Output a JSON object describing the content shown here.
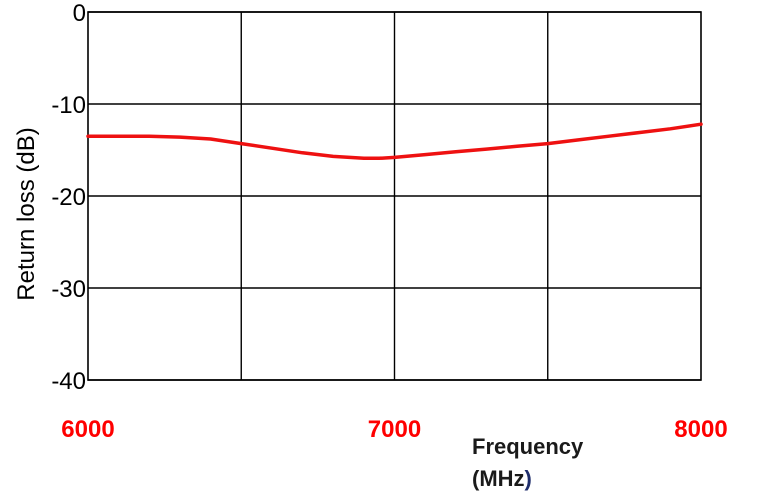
{
  "chart_data": {
    "type": "line",
    "title": "",
    "xlabel_line1": "Frequency",
    "xlabel_line2_open": "(MHz",
    "xlabel_line2_close": ")",
    "ylabel": "Return loss (dB)",
    "xlim": [
      6000,
      8000
    ],
    "ylim": [
      -40,
      0
    ],
    "x_ticks": [
      {
        "value": 6000,
        "label": "6000"
      },
      {
        "value": 7000,
        "label": "7000"
      },
      {
        "value": 8000,
        "label": "8000"
      }
    ],
    "x_gridlines": [
      6500,
      7000,
      7500
    ],
    "y_ticks": [
      {
        "value": 0,
        "label": "0"
      },
      {
        "value": -10,
        "label": "-10"
      },
      {
        "value": -20,
        "label": "-20"
      },
      {
        "value": -30,
        "label": "-30"
      },
      {
        "value": -40,
        "label": "-40"
      }
    ],
    "grid": true,
    "x_tick_color": "#ff0000",
    "series": [
      {
        "color": "#ee1111",
        "x": [
          6000,
          6100,
          6200,
          6300,
          6400,
          6500,
          6600,
          6700,
          6800,
          6900,
          6950,
          7000,
          7100,
          7200,
          7300,
          7400,
          7500,
          7600,
          7700,
          7800,
          7900,
          8000
        ],
        "y": [
          -13.5,
          -13.5,
          -13.5,
          -13.6,
          -13.8,
          -14.3,
          -14.8,
          -15.3,
          -15.7,
          -15.9,
          -15.9,
          -15.8,
          -15.5,
          -15.2,
          -14.9,
          -14.6,
          -14.3,
          -13.9,
          -13.5,
          -13.1,
          -12.7,
          -12.2
        ]
      }
    ]
  }
}
